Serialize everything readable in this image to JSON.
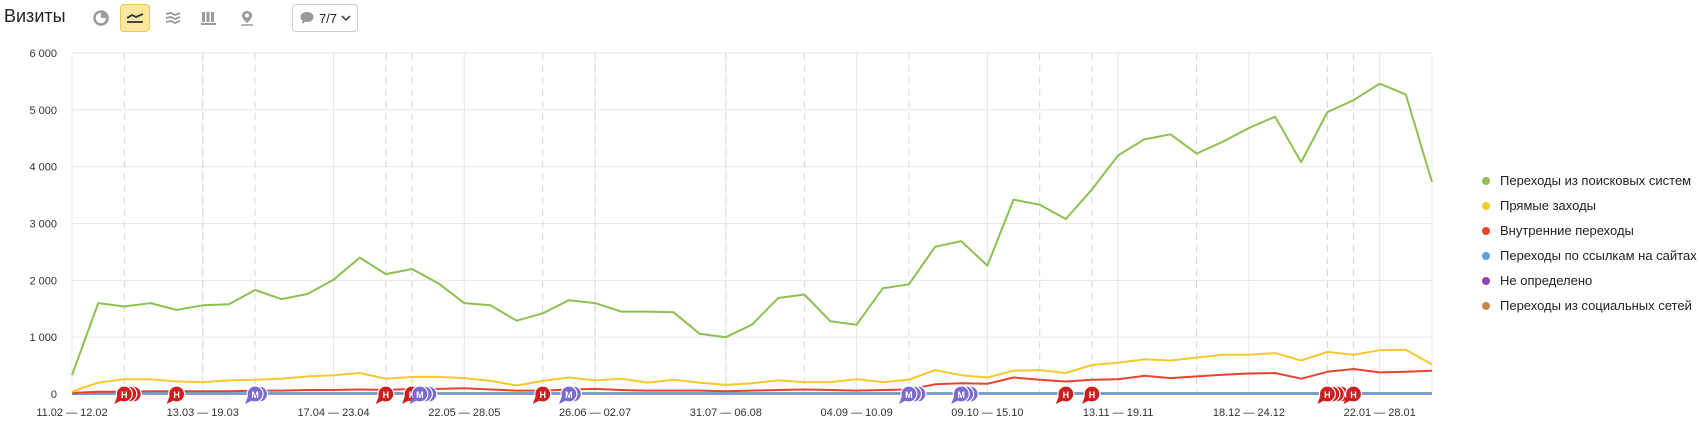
{
  "header": {
    "title": "Визиты",
    "notes_count": "7/7"
  },
  "colors": {
    "grid": "#e8e8e8",
    "active_button": "#fbe7a0",
    "note_red": "#cc1f1f",
    "note_purple": "#7b6bcf",
    "icon": "#9a9a9a"
  },
  "chart_data": {
    "type": "line",
    "xlabel": "",
    "ylabel": "",
    "ylim": [
      0,
      6000
    ],
    "yticks": [
      "0",
      "1 000",
      "2 000",
      "3 000",
      "4 000",
      "5 000",
      "6 000"
    ],
    "x_tick_labels": [
      "11.02 — 12.02",
      "13.03 — 19.03",
      "17.04 — 23.04",
      "22.05 — 28.05",
      "26.06 — 02.07",
      "31.07 — 06.08",
      "04.09 — 10.09",
      "09.10 — 15.10",
      "13.11 — 19.11",
      "18.12 — 24.12",
      "22.01 — 28.01"
    ],
    "x_tick_points": [
      0,
      5,
      10,
      15,
      20,
      25,
      30,
      35,
      40,
      45,
      50
    ],
    "dashed_points": [
      2,
      5,
      7,
      12,
      13,
      18,
      20,
      25,
      28,
      32,
      37,
      39,
      43,
      48,
      49
    ],
    "grid": true,
    "legend_position": "right",
    "series": [
      {
        "name": "Переходы из поисковых систем",
        "color": "#8cc152",
        "values": [
          330,
          1600,
          1540,
          1600,
          1480,
          1560,
          1580,
          1830,
          1670,
          1760,
          2010,
          2400,
          2110,
          2200,
          1950,
          1600,
          1560,
          1290,
          1420,
          1650,
          1600,
          1450,
          1450,
          1440,
          1060,
          1000,
          1220,
          1690,
          1750,
          1280,
          1220,
          1860,
          1930,
          2590,
          2690,
          2260,
          3420,
          3330,
          3080,
          3600,
          4200,
          4480,
          4570,
          4230,
          4440,
          4680,
          4880,
          4080,
          4960,
          5170,
          5460,
          5270,
          3730
        ]
      },
      {
        "name": "Прямые заходы",
        "color": "#f7c72e",
        "values": [
          40,
          200,
          260,
          260,
          220,
          210,
          240,
          250,
          270,
          310,
          330,
          370,
          270,
          300,
          300,
          280,
          230,
          150,
          230,
          290,
          240,
          270,
          200,
          250,
          200,
          160,
          190,
          240,
          210,
          210,
          260,
          210,
          250,
          420,
          330,
          290,
          410,
          420,
          370,
          510,
          550,
          610,
          590,
          640,
          690,
          690,
          720,
          590,
          740,
          690,
          770,
          780,
          520
        ]
      },
      {
        "name": "Внутренние переходы",
        "color": "#e8432e",
        "values": [
          20,
          40,
          40,
          50,
          50,
          50,
          50,
          60,
          60,
          70,
          70,
          80,
          70,
          90,
          90,
          100,
          80,
          60,
          60,
          80,
          90,
          70,
          60,
          60,
          60,
          50,
          60,
          70,
          80,
          70,
          60,
          70,
          80,
          170,
          190,
          180,
          290,
          250,
          220,
          250,
          260,
          320,
          280,
          310,
          340,
          360,
          370,
          270,
          390,
          440,
          380,
          390,
          410
        ]
      },
      {
        "name": "Переходы по ссылкам на сайтах",
        "color": "#5aa1e3",
        "values": [
          5,
          10,
          10,
          10,
          10,
          10,
          10,
          10,
          10,
          10,
          10,
          10,
          10,
          10,
          10,
          10,
          10,
          10,
          10,
          10,
          10,
          10,
          10,
          10,
          10,
          10,
          10,
          10,
          10,
          10,
          10,
          10,
          10,
          10,
          10,
          10,
          10,
          10,
          10,
          10,
          10,
          10,
          10,
          10,
          10,
          10,
          10,
          10,
          10,
          10,
          10,
          10,
          10
        ]
      },
      {
        "name": "Не определено",
        "color": "#8e44ad",
        "values": [
          2,
          5,
          5,
          5,
          5,
          5,
          5,
          5,
          5,
          5,
          5,
          5,
          5,
          5,
          5,
          5,
          5,
          5,
          5,
          5,
          5,
          5,
          5,
          5,
          5,
          5,
          5,
          5,
          5,
          5,
          5,
          5,
          5,
          5,
          5,
          5,
          5,
          5,
          5,
          5,
          5,
          5,
          5,
          5,
          5,
          5,
          5,
          5,
          5,
          5,
          5,
          5,
          5
        ]
      },
      {
        "name": "Переходы из социальных сетей",
        "color": "#c9864a",
        "values": [
          5,
          10,
          10,
          12,
          12,
          12,
          12,
          15,
          15,
          15,
          15,
          15,
          15,
          15,
          15,
          15,
          15,
          15,
          15,
          15,
          15,
          15,
          15,
          15,
          15,
          15,
          15,
          15,
          15,
          15,
          15,
          15,
          15,
          15,
          15,
          15,
          15,
          15,
          15,
          15,
          15,
          15,
          15,
          15,
          15,
          15,
          15,
          15,
          15,
          15,
          15,
          15,
          15
        ]
      }
    ],
    "annotations": [
      {
        "point": 2,
        "kind": "red",
        "count": 3
      },
      {
        "point": 4,
        "kind": "red",
        "count": 1
      },
      {
        "point": 7,
        "kind": "purple",
        "count": 2
      },
      {
        "point": 12,
        "kind": "red",
        "count": 1
      },
      {
        "point": 13,
        "kind": "red",
        "count": 1
      },
      {
        "point": 13.3,
        "kind": "purple",
        "count": 3
      },
      {
        "point": 18,
        "kind": "red",
        "count": 1
      },
      {
        "point": 19,
        "kind": "purple",
        "count": 2
      },
      {
        "point": 32,
        "kind": "purple",
        "count": 3
      },
      {
        "point": 34,
        "kind": "purple",
        "count": 3
      },
      {
        "point": 38,
        "kind": "red",
        "count": 1
      },
      {
        "point": 39,
        "kind": "red",
        "count": 1
      },
      {
        "point": 48,
        "kind": "red",
        "count": 4
      },
      {
        "point": 49,
        "kind": "red",
        "count": 1
      }
    ],
    "annotation_letters": {
      "red": "Н",
      "purple": "М"
    }
  }
}
